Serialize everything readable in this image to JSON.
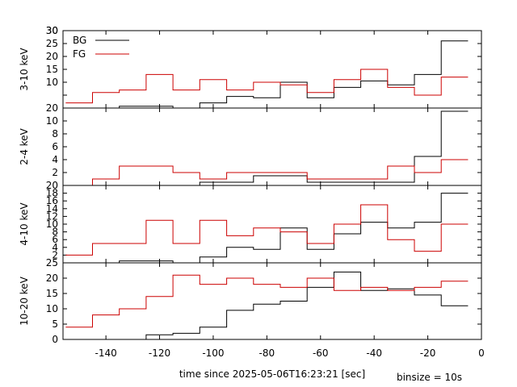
{
  "xlabel": "time since 2025-05-06T16:23:21 [sec]",
  "binsize_label": "binsize = 10s",
  "chart_data": {
    "type": "line",
    "xlim": [
      -156,
      0
    ],
    "xticks": [
      -140,
      -120,
      -100,
      -80,
      -60,
      -40,
      -20,
      0
    ],
    "xtick_labels": [
      "-140",
      "-120",
      "-100",
      "-80",
      "-60",
      "-40",
      "-20",
      "0"
    ],
    "x_edges": [
      -155,
      -145,
      -135,
      -125,
      -115,
      -105,
      -95,
      -85,
      -75,
      -65,
      -55,
      -45,
      -35,
      -25,
      -15,
      -5
    ],
    "grid": false,
    "legend": {
      "placement": "top-left",
      "panel": 0
    },
    "series_styles": [
      {
        "name": "BG",
        "color": "#000000"
      },
      {
        "name": "FG",
        "color": "#cc0000"
      }
    ],
    "panels": [
      {
        "ylabel": "3-10 keV",
        "ylim": [
          0,
          30
        ],
        "yticks": [
          0,
          5,
          10,
          15,
          20,
          25,
          30
        ],
        "ytick_labels": [
          "10",
          "15",
          "20",
          "25",
          "30"
        ],
        "series": [
          {
            "name": "BG",
            "values": [
              0,
              0,
              0.7,
              0.7,
              0,
              2,
              4.5,
              4,
              10,
              4,
              8,
              10.5,
              9,
              13,
              26
            ]
          },
          {
            "name": "FG",
            "values": [
              2,
              6,
              7,
              13,
              7,
              11,
              7,
              10,
              9,
              6,
              11,
              15,
              8,
              5,
              12
            ]
          }
        ]
      },
      {
        "ylabel": "2-4 keV",
        "ylim": [
          0,
          12
        ],
        "yticks": [
          0,
          2,
          4,
          6,
          8,
          10,
          12
        ],
        "ytick_labels": [
          "2",
          "4",
          "6",
          "8",
          "10"
        ],
        "series": [
          {
            "name": "BG",
            "values": [
              0,
              0,
              0,
              0,
              0,
              0.5,
              0.5,
              1.5,
              1.5,
              0.5,
              0.5,
              0.5,
              0.5,
              4.5,
              11.5
            ]
          },
          {
            "name": "FG",
            "values": [
              0,
              1,
              3,
              3,
              2,
              1,
              2,
              2,
              2,
              1,
              1,
              1,
              3,
              2,
              4
            ]
          }
        ]
      },
      {
        "ylabel": "4-10 keV",
        "ylim": [
          0,
          20
        ],
        "yticks": [
          0,
          2,
          4,
          6,
          8,
          10,
          12,
          14,
          16,
          18,
          20
        ],
        "ytick_labels": [
          "2",
          "4",
          "6",
          "8",
          "10",
          "12",
          "14",
          "16",
          "18"
        ],
        "series": [
          {
            "name": "BG",
            "values": [
              0,
              0,
              0.5,
              0.5,
              0,
              1.5,
              4,
              3.5,
              9,
              3.5,
              7.5,
              10.5,
              9,
              10.5,
              18
            ]
          },
          {
            "name": "FG",
            "values": [
              2,
              5,
              5,
              11,
              5,
              11,
              7,
              9,
              8,
              5,
              10,
              15,
              6,
              3,
              10
            ]
          }
        ]
      },
      {
        "ylabel": "10-20 keV",
        "ylim": [
          0,
          25
        ],
        "yticks": [
          0,
          5,
          10,
          15,
          20,
          25
        ],
        "ytick_labels": [
          "0",
          "5",
          "10",
          "15",
          "20"
        ],
        "series": [
          {
            "name": "BG",
            "values": [
              0,
              0,
              0,
              1.5,
              2,
              4,
              9.5,
              11.5,
              12.5,
              17,
              22,
              16,
              16.5,
              14.5,
              11
            ]
          },
          {
            "name": "FG",
            "values": [
              4,
              8,
              10,
              14,
              21,
              18,
              20,
              18,
              17,
              20,
              16,
              17,
              16,
              17,
              19
            ]
          }
        ]
      }
    ],
    "top_tick_labels": [
      "30",
      "20",
      "20",
      "25"
    ]
  }
}
